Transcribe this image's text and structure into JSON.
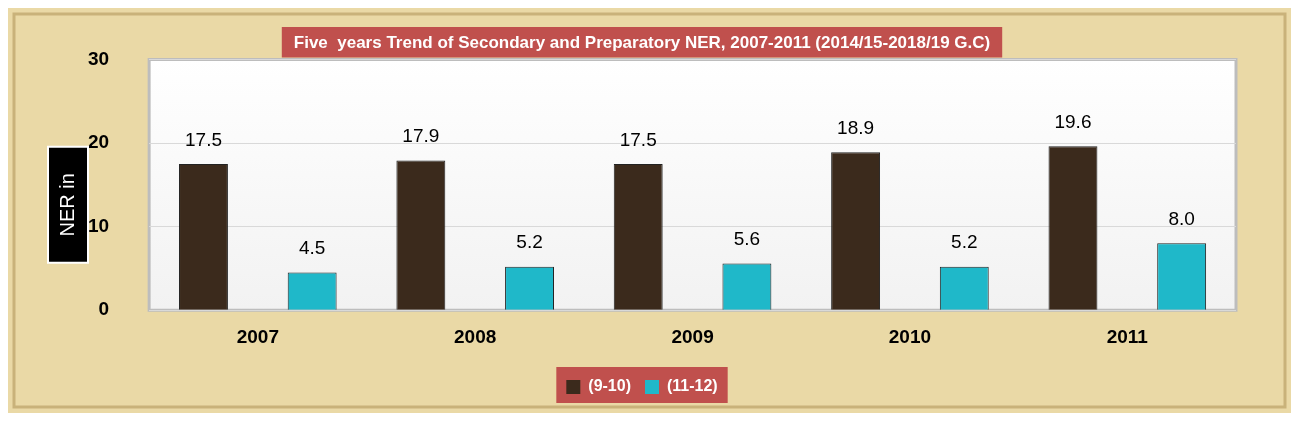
{
  "chart_data": {
    "type": "bar",
    "title": "Five  years Trend of Secondary and Preparatory NER, 2007-2011 (2014/15-2018/19 G.C)",
    "ylabel": "NER in",
    "categories": [
      "2007",
      "2008",
      "2009",
      "2010",
      "2011"
    ],
    "series": [
      {
        "name": "(9-10)",
        "color": "#3b2a1c",
        "values": [
          17.5,
          17.9,
          17.5,
          18.9,
          19.6
        ],
        "value_labels": [
          "17.5",
          "17.9",
          "17.5",
          "18.9",
          "19.6"
        ]
      },
      {
        "name": "(11-12)",
        "color": "#1fb8c9",
        "values": [
          4.5,
          5.2,
          5.6,
          5.2,
          8.0
        ],
        "value_labels": [
          "4.5",
          "5.2",
          "5.6",
          "5.2",
          "8.0"
        ]
      }
    ],
    "ylim": [
      0,
      30
    ],
    "yticks": [
      0,
      10,
      20,
      30
    ],
    "grid": "y",
    "legend": "bottom"
  }
}
